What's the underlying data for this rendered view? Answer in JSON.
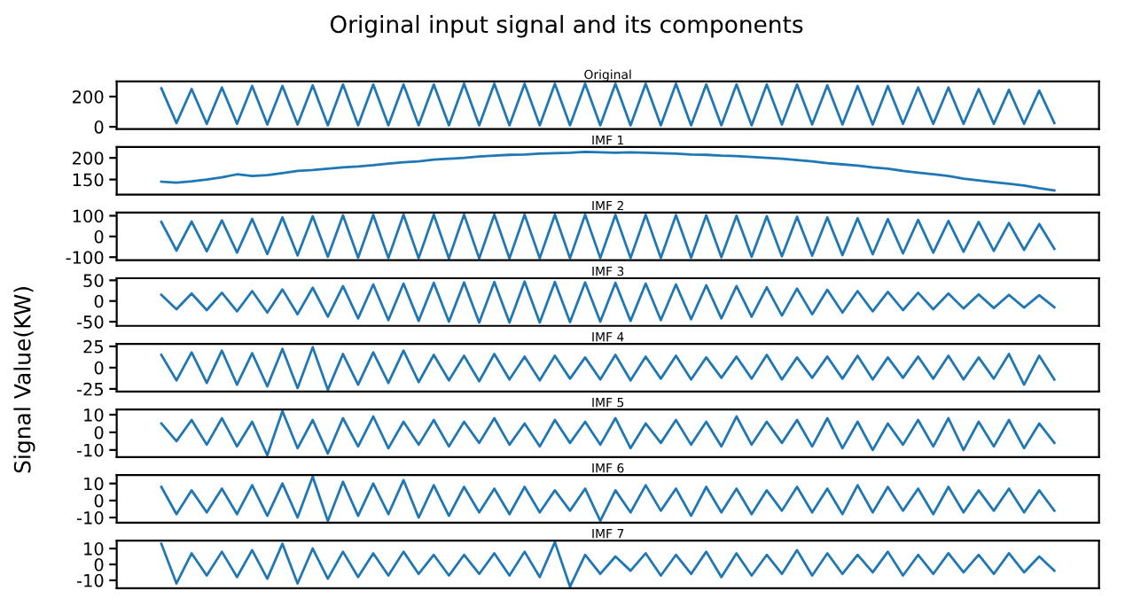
{
  "chart_data": [
    {
      "type": "line",
      "title": "Original",
      "annotations": [
        "Original input signal and its components"
      ],
      "ylim": [
        -15,
        300
      ],
      "yticks": [
        0,
        200
      ],
      "tick_labels": "y",
      "categories": [
        null,
        null,
        null,
        null,
        null,
        null,
        null,
        null,
        null,
        null,
        null,
        null,
        null,
        null,
        null,
        null,
        null,
        null,
        null,
        null,
        null,
        null,
        null,
        null,
        null,
        null,
        null,
        null,
        null,
        null,
        null,
        null,
        null,
        null,
        null,
        null,
        null,
        null,
        null,
        null,
        null,
        null,
        null,
        null,
        null,
        null,
        null,
        null,
        null,
        null,
        null,
        null,
        null,
        null,
        null,
        null,
        null,
        null,
        null,
        null
      ],
      "series": [
        {
          "color": "#1f77b4",
          "values": [
            255,
            25,
            250,
            20,
            260,
            20,
            270,
            15,
            270,
            15,
            275,
            10,
            280,
            10,
            280,
            10,
            280,
            10,
            280,
            10,
            285,
            10,
            285,
            10,
            285,
            10,
            285,
            10,
            285,
            10,
            285,
            10,
            285,
            10,
            285,
            10,
            280,
            10,
            280,
            10,
            280,
            15,
            280,
            15,
            275,
            15,
            270,
            15,
            270,
            20,
            260,
            20,
            260,
            20,
            250,
            20,
            245,
            20,
            240,
            25
          ]
        }
      ]
    },
    {
      "type": "line",
      "title": "IMF 1",
      "ylim": [
        115,
        225
      ],
      "yticks": [
        150,
        200
      ],
      "tick_labels": "y",
      "categories": [
        null,
        null,
        null,
        null,
        null,
        null,
        null,
        null,
        null,
        null,
        null,
        null,
        null,
        null,
        null,
        null,
        null,
        null,
        null,
        null,
        null,
        null,
        null,
        null,
        null,
        null,
        null,
        null,
        null,
        null,
        null,
        null,
        null,
        null,
        null,
        null,
        null,
        null,
        null,
        null,
        null,
        null,
        null,
        null,
        null,
        null,
        null,
        null,
        null,
        null,
        null,
        null,
        null,
        null,
        null,
        null,
        null,
        null,
        null,
        null
      ],
      "series": [
        {
          "color": "#1f77b4",
          "values": [
            145,
            143,
            146,
            150,
            155,
            162,
            158,
            160,
            165,
            170,
            172,
            175,
            178,
            180,
            183,
            187,
            190,
            192,
            196,
            198,
            200,
            203,
            205,
            207,
            208,
            210,
            211,
            212,
            214,
            213,
            212,
            213,
            212,
            211,
            210,
            208,
            207,
            205,
            204,
            202,
            200,
            198,
            195,
            192,
            188,
            185,
            182,
            178,
            175,
            170,
            166,
            162,
            158,
            152,
            148,
            144,
            140,
            136,
            130,
            125
          ]
        }
      ]
    },
    {
      "type": "line",
      "title": "IMF 2",
      "ylim": [
        -115,
        115
      ],
      "yticks": [
        -100,
        0,
        100
      ],
      "tick_labels": "y",
      "categories": [
        null,
        null,
        null,
        null,
        null,
        null,
        null,
        null,
        null,
        null,
        null,
        null,
        null,
        null,
        null,
        null,
        null,
        null,
        null,
        null,
        null,
        null,
        null,
        null,
        null,
        null,
        null,
        null,
        null,
        null,
        null,
        null,
        null,
        null,
        null,
        null,
        null,
        null,
        null,
        null,
        null,
        null,
        null,
        null,
        null,
        null,
        null,
        null,
        null,
        null,
        null,
        null,
        null,
        null,
        null,
        null,
        null,
        null,
        null,
        null
      ],
      "series": [
        {
          "color": "#1f77b4",
          "values": [
            70,
            -68,
            72,
            -72,
            78,
            -78,
            85,
            -85,
            92,
            -92,
            98,
            -98,
            102,
            -102,
            104,
            -104,
            105,
            -105,
            105,
            -106,
            106,
            -106,
            106,
            -106,
            105,
            -105,
            105,
            -105,
            105,
            -104,
            104,
            -104,
            104,
            -103,
            103,
            -102,
            102,
            -100,
            100,
            -98,
            98,
            -96,
            95,
            -93,
            92,
            -90,
            88,
            -86,
            84,
            -82,
            80,
            -78,
            75,
            -74,
            70,
            -70,
            65,
            -65,
            60,
            -60
          ]
        }
      ]
    },
    {
      "type": "line",
      "title": "IMF 3",
      "ylim": [
        -60,
        55
      ],
      "yticks": [
        -50,
        0,
        50
      ],
      "tick_labels": "y",
      "categories": [
        null,
        null,
        null,
        null,
        null,
        null,
        null,
        null,
        null,
        null,
        null,
        null,
        null,
        null,
        null,
        null,
        null,
        null,
        null,
        null,
        null,
        null,
        null,
        null,
        null,
        null,
        null,
        null,
        null,
        null,
        null,
        null,
        null,
        null,
        null,
        null,
        null,
        null,
        null,
        null,
        null,
        null,
        null,
        null,
        null,
        null,
        null,
        null,
        null,
        null,
        null,
        null,
        null,
        null,
        null,
        null,
        null,
        null,
        null,
        null
      ],
      "series": [
        {
          "color": "#1f77b4",
          "values": [
            15,
            -20,
            18,
            -22,
            20,
            -25,
            24,
            -28,
            28,
            -32,
            32,
            -38,
            36,
            -42,
            40,
            -46,
            42,
            -48,
            44,
            -50,
            45,
            -52,
            46,
            -52,
            47,
            -52,
            46,
            -51,
            45,
            -50,
            44,
            -48,
            42,
            -46,
            40,
            -44,
            38,
            -42,
            36,
            -38,
            33,
            -35,
            30,
            -32,
            27,
            -28,
            24,
            -25,
            22,
            -22,
            20,
            -20,
            18,
            -18,
            16,
            -17,
            15,
            -16,
            14,
            -15
          ]
        }
      ]
    },
    {
      "type": "line",
      "title": "IMF 4",
      "ylabel": "Signal Value(KW)",
      "ylim": [
        -28,
        28
      ],
      "yticks": [
        -25,
        0,
        25
      ],
      "tick_labels": "y",
      "categories": [
        null,
        null,
        null,
        null,
        null,
        null,
        null,
        null,
        null,
        null,
        null,
        null,
        null,
        null,
        null,
        null,
        null,
        null,
        null,
        null,
        null,
        null,
        null,
        null,
        null,
        null,
        null,
        null,
        null,
        null,
        null,
        null,
        null,
        null,
        null,
        null,
        null,
        null,
        null,
        null,
        null,
        null,
        null,
        null,
        null,
        null,
        null,
        null,
        null,
        null,
        null,
        null,
        null,
        null,
        null,
        null,
        null,
        null,
        null,
        null
      ],
      "series": [
        {
          "color": "#1f77b4",
          "values": [
            15,
            -15,
            18,
            -18,
            20,
            -20,
            17,
            -22,
            22,
            -24,
            24,
            -26,
            16,
            -20,
            18,
            -18,
            20,
            -17,
            15,
            -15,
            14,
            -16,
            16,
            -14,
            13,
            -15,
            14,
            -13,
            12,
            -14,
            15,
            -15,
            13,
            -13,
            14,
            -14,
            12,
            -12,
            13,
            -13,
            15,
            -14,
            12,
            -12,
            13,
            -13,
            14,
            -14,
            12,
            -12,
            13,
            -13,
            14,
            -14,
            12,
            -13,
            16,
            -20,
            14,
            -14
          ]
        }
      ]
    },
    {
      "type": "line",
      "title": "IMF 5",
      "ylim": [
        -14,
        13
      ],
      "yticks": [
        -10,
        0,
        10
      ],
      "tick_labels": "y",
      "categories": [
        null,
        null,
        null,
        null,
        null,
        null,
        null,
        null,
        null,
        null,
        null,
        null,
        null,
        null,
        null,
        null,
        null,
        null,
        null,
        null,
        null,
        null,
        null,
        null,
        null,
        null,
        null,
        null,
        null,
        null,
        null,
        null,
        null,
        null,
        null,
        null,
        null,
        null,
        null,
        null,
        null,
        null,
        null,
        null,
        null,
        null,
        null,
        null,
        null,
        null,
        null,
        null,
        null,
        null,
        null,
        null,
        null,
        null,
        null,
        null
      ],
      "series": [
        {
          "color": "#1f77b4",
          "values": [
            5,
            -5,
            7,
            -7,
            8,
            -8,
            6,
            -13,
            12,
            -9,
            7,
            -12,
            8,
            -8,
            9,
            -9,
            6,
            -7,
            7,
            -8,
            6,
            -6,
            8,
            -7,
            5,
            -8,
            7,
            -6,
            6,
            -7,
            8,
            -9,
            5,
            -6,
            7,
            -7,
            6,
            -8,
            9,
            -7,
            6,
            -6,
            7,
            -8,
            8,
            -9,
            6,
            -10,
            5,
            -7,
            7,
            -8,
            8,
            -10,
            6,
            -8,
            7,
            -9,
            5,
            -6
          ]
        }
      ]
    },
    {
      "type": "line",
      "title": "IMF 6",
      "ylim": [
        -13,
        15
      ],
      "yticks": [
        -10,
        0,
        10
      ],
      "tick_labels": "y",
      "categories": [
        null,
        null,
        null,
        null,
        null,
        null,
        null,
        null,
        null,
        null,
        null,
        null,
        null,
        null,
        null,
        null,
        null,
        null,
        null,
        null,
        null,
        null,
        null,
        null,
        null,
        null,
        null,
        null,
        null,
        null,
        null,
        null,
        null,
        null,
        null,
        null,
        null,
        null,
        null,
        null,
        null,
        null,
        null,
        null,
        null,
        null,
        null,
        null,
        null,
        null,
        null,
        null,
        null,
        null,
        null,
        null,
        null,
        null,
        null,
        null
      ],
      "series": [
        {
          "color": "#1f77b4",
          "values": [
            8,
            -8,
            6,
            -7,
            7,
            -8,
            9,
            -9,
            10,
            -10,
            14,
            -12,
            11,
            -9,
            10,
            -8,
            12,
            -10,
            9,
            -9,
            8,
            -7,
            7,
            -8,
            8,
            -7,
            6,
            -6,
            7,
            -12,
            6,
            -7,
            9,
            -6,
            7,
            -9,
            8,
            -7,
            7,
            -8,
            6,
            -6,
            8,
            -7,
            7,
            -8,
            9,
            -7,
            8,
            -6,
            7,
            -8,
            8,
            -7,
            6,
            -6,
            7,
            -7,
            6,
            -6
          ]
        }
      ]
    },
    {
      "type": "line",
      "title": "IMF 7",
      "ylim": [
        -15,
        15
      ],
      "yticks": [
        -10,
        0,
        10
      ],
      "tick_labels": "y",
      "categories": [
        null,
        null,
        null,
        null,
        null,
        null,
        null,
        null,
        null,
        null,
        null,
        null,
        null,
        null,
        null,
        null,
        null,
        null,
        null,
        null,
        null,
        null,
        null,
        null,
        null,
        null,
        null,
        null,
        null,
        null,
        null,
        null,
        null,
        null,
        null,
        null,
        null,
        null,
        null,
        null,
        null,
        null,
        null,
        null,
        null,
        null,
        null,
        null,
        null,
        null,
        null,
        null,
        null,
        null,
        null,
        null,
        null,
        null,
        null,
        null
      ],
      "series": [
        {
          "color": "#1f77b4",
          "values": [
            13,
            -12,
            7,
            -7,
            8,
            -8,
            9,
            -9,
            13,
            -12,
            10,
            -9,
            8,
            -8,
            7,
            -7,
            8,
            -6,
            6,
            -7,
            6,
            -6,
            7,
            -7,
            8,
            -8,
            14,
            -14,
            6,
            -6,
            5,
            -4,
            7,
            -7,
            6,
            -6,
            8,
            -8,
            7,
            -7,
            6,
            -6,
            9,
            -7,
            7,
            -6,
            6,
            -5,
            8,
            -7,
            6,
            -6,
            7,
            -5,
            6,
            -6,
            7,
            -5,
            5,
            -4
          ]
        }
      ]
    }
  ]
}
